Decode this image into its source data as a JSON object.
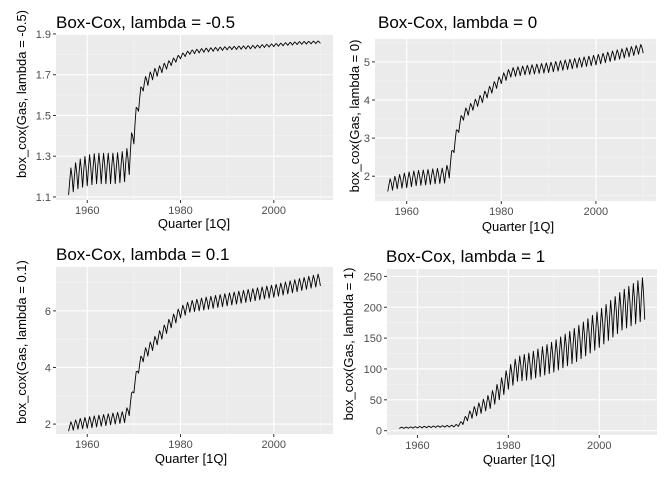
{
  "chart_data": [
    {
      "type": "line",
      "title": "Box-Cox, lambda = -0.5",
      "xlabel": "Quarter [1Q]",
      "ylabel": "box_cox(Gas, lambda = -0.5)",
      "xlim": [
        1953.3,
        2012.7
      ],
      "ylim": [
        1.085,
        1.895
      ],
      "xticks": [
        1960,
        1980,
        2000
      ],
      "xtick_labels": [
        "1960",
        "1980",
        "2000"
      ],
      "yticks": [
        1.1,
        1.3,
        1.5,
        1.7,
        1.9
      ],
      "ytick_labels": [
        "1.1",
        "1.3",
        "1.5",
        "1.7",
        "1.9"
      ],
      "grid": true,
      "series": [
        {
          "x": [
            1956,
            1958,
            1960,
            1962,
            1964,
            1966,
            1968,
            1969,
            1970,
            1971,
            1972,
            1974,
            1976,
            1978,
            1980,
            1982,
            1985,
            1990,
            1995,
            2000,
            2005,
            2010
          ],
          "y": [
            1.17,
            1.21,
            1.23,
            1.24,
            1.24,
            1.24,
            1.25,
            1.28,
            1.42,
            1.56,
            1.65,
            1.7,
            1.73,
            1.76,
            1.79,
            1.81,
            1.82,
            1.83,
            1.835,
            1.845,
            1.855,
            1.86
          ],
          "seasonal_amplitude": [
            0.06,
            0.07,
            0.075,
            0.075,
            0.075,
            0.075,
            0.075,
            0.07,
            0.06,
            0.04,
            0.03,
            0.025,
            0.02,
            0.015,
            0.012,
            0.01,
            0.01,
            0.008,
            0.008,
            0.007,
            0.007,
            0.006
          ]
        }
      ]
    },
    {
      "type": "line",
      "title": "Box-Cox, lambda = 0",
      "xlabel": "Quarter [1Q]",
      "ylabel": "box_cox(Gas, lambda = 0)",
      "xlim": [
        1953.3,
        2012.7
      ],
      "ylim": [
        1.35,
        5.6
      ],
      "xticks": [
        1960,
        1980,
        2000
      ],
      "xtick_labels": [
        "1960",
        "1980",
        "2000"
      ],
      "yticks": [
        2,
        3,
        4,
        5
      ],
      "ytick_labels": [
        "2",
        "3",
        "4",
        "5"
      ],
      "grid": true,
      "series": [
        {
          "x": [
            1956,
            1958,
            1960,
            1962,
            1964,
            1966,
            1968,
            1969,
            1970,
            1971,
            1972,
            1974,
            1976,
            1978,
            1980,
            1982,
            1985,
            1990,
            1995,
            2000,
            2005,
            2010
          ],
          "y": [
            1.75,
            1.85,
            1.9,
            1.95,
            1.97,
            2.0,
            2.02,
            2.15,
            2.8,
            3.3,
            3.6,
            3.85,
            4.05,
            4.3,
            4.55,
            4.72,
            4.78,
            4.85,
            4.95,
            5.05,
            5.2,
            5.35
          ],
          "seasonal_amplitude": [
            0.15,
            0.18,
            0.2,
            0.2,
            0.2,
            0.2,
            0.2,
            0.2,
            0.18,
            0.15,
            0.13,
            0.12,
            0.12,
            0.12,
            0.12,
            0.12,
            0.12,
            0.13,
            0.13,
            0.13,
            0.13,
            0.12
          ]
        }
      ]
    },
    {
      "type": "line",
      "title": "Box-Cox, lambda = 0.1",
      "xlabel": "Quarter [1Q]",
      "ylabel": "box_cox(Gas, lambda = 0.1)",
      "xlim": [
        1953.3,
        2012.7
      ],
      "ylim": [
        1.65,
        7.55
      ],
      "xticks": [
        1960,
        1980,
        2000
      ],
      "xtick_labels": [
        "1960",
        "1980",
        "2000"
      ],
      "yticks": [
        2,
        4,
        6
      ],
      "ytick_labels": [
        "2",
        "4",
        "6"
      ],
      "grid": true,
      "series": [
        {
          "x": [
            1956,
            1958,
            1960,
            1962,
            1964,
            1966,
            1968,
            1969,
            1970,
            1971,
            1972,
            1974,
            1976,
            1978,
            1980,
            1982,
            1985,
            1990,
            1995,
            2000,
            2005,
            2010
          ],
          "y": [
            1.9,
            2.0,
            2.05,
            2.1,
            2.15,
            2.2,
            2.25,
            2.5,
            3.3,
            4.0,
            4.4,
            4.8,
            5.2,
            5.6,
            5.95,
            6.15,
            6.25,
            6.4,
            6.55,
            6.7,
            6.9,
            7.1
          ],
          "seasonal_amplitude": [
            0.15,
            0.18,
            0.2,
            0.2,
            0.2,
            0.2,
            0.2,
            0.2,
            0.2,
            0.2,
            0.2,
            0.2,
            0.2,
            0.2,
            0.2,
            0.2,
            0.22,
            0.22,
            0.22,
            0.22,
            0.22,
            0.22
          ]
        }
      ]
    },
    {
      "type": "line",
      "title": "Box-Cox, lambda = 1",
      "xlabel": "Quarter [1Q]",
      "ylabel": "box_cox(Gas, lambda = 1)",
      "xlim": [
        1953.3,
        2012.7
      ],
      "ylim": [
        -7,
        262
      ],
      "xticks": [
        1960,
        1980,
        2000
      ],
      "xtick_labels": [
        "1960",
        "1980",
        "2000"
      ],
      "yticks": [
        0,
        50,
        100,
        150,
        200,
        250
      ],
      "ytick_labels": [
        "0",
        "50",
        "100",
        "150",
        "200",
        "250"
      ],
      "grid": true,
      "series": [
        {
          "x": [
            1956,
            1958,
            1960,
            1962,
            1964,
            1966,
            1968,
            1969,
            1970,
            1971,
            1972,
            1974,
            1976,
            1978,
            1980,
            1982,
            1985,
            1990,
            1995,
            2000,
            2005,
            2010
          ],
          "y": [
            4.5,
            5,
            5.5,
            6,
            6.5,
            7,
            7.5,
            9,
            14,
            22,
            28,
            38,
            48,
            65,
            85,
            100,
            105,
            120,
            140,
            165,
            195,
            215
          ],
          "seasonal_amplitude": [
            1,
            1,
            1.2,
            1.2,
            1.2,
            1.3,
            1.5,
            2,
            4,
            6,
            8,
            10,
            12,
            15,
            18,
            20,
            22,
            25,
            28,
            30,
            32,
            35
          ]
        }
      ]
    }
  ]
}
